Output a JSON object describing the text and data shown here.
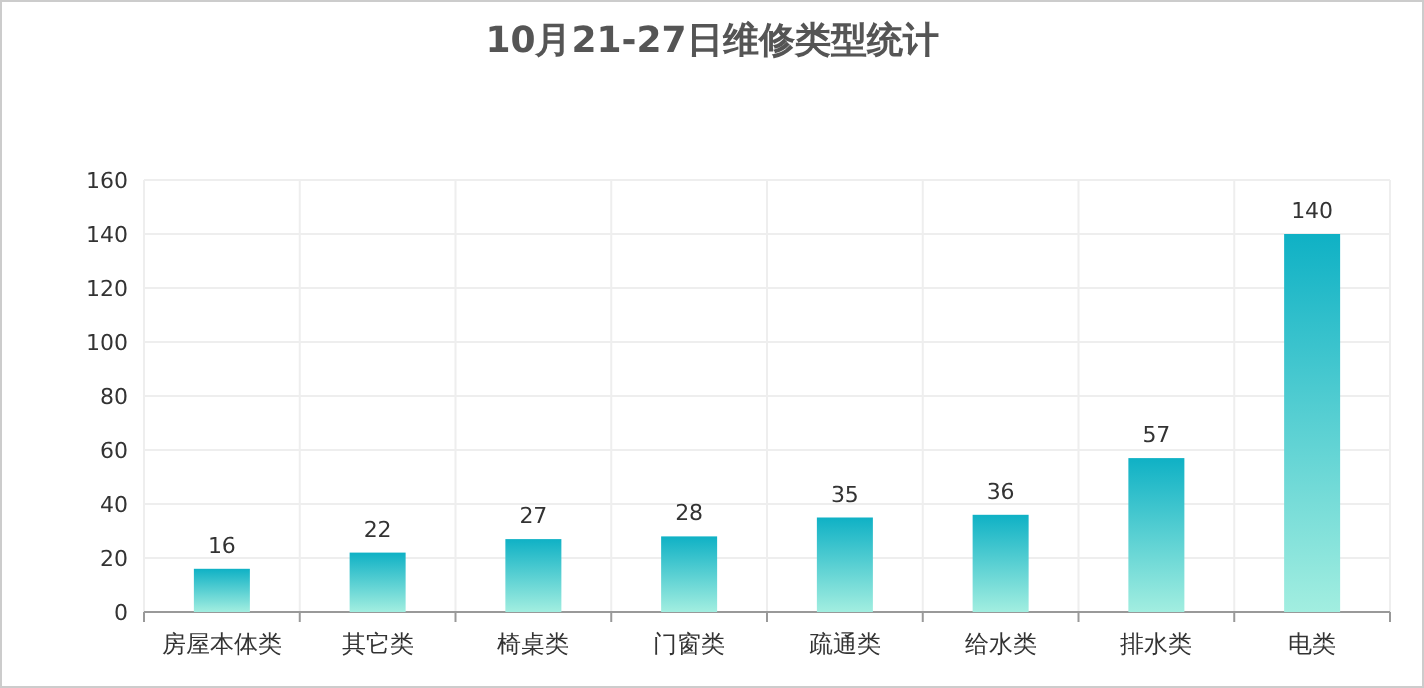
{
  "chart_data": {
    "type": "bar",
    "title": "10月21-27日维修类型统计",
    "categories": [
      "房屋本体类",
      "其它类",
      "椅桌类",
      "门窗类",
      "疏通类",
      "给水类",
      "排水类",
      "电类"
    ],
    "values": [
      16,
      22,
      27,
      28,
      35,
      36,
      57,
      140
    ],
    "color": "#0fb1c5",
    "ylim": [
      0,
      160
    ],
    "yticks": [
      0,
      20,
      40,
      60,
      80,
      100,
      120,
      140,
      160
    ],
    "grid": true,
    "data_labels": true
  }
}
